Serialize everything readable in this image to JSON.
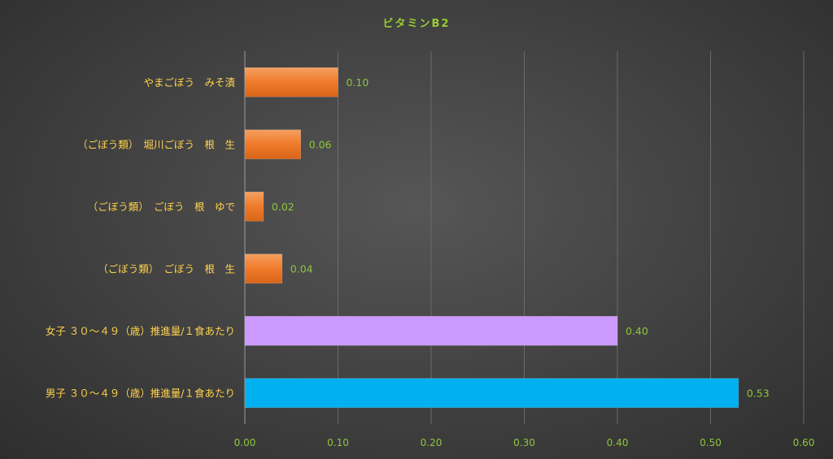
{
  "chart_data": {
    "type": "bar",
    "orientation": "horizontal",
    "title": "ビタミンB2",
    "categories": [
      "やまごぼう　みそ漬",
      "（ごぼう類）　堀川ごぼう　根　生",
      "（ごぼう類）　ごぼう　根　ゆで",
      "（ごぼう類）　ごぼう　根　生",
      "女子 ３０～４９（歳）推進量/１食あたり",
      "男子 ３０～４９（歳）推進量/１食あたり"
    ],
    "values": [
      0.1,
      0.06,
      0.02,
      0.04,
      0.4,
      0.53
    ],
    "value_labels": [
      "0.10",
      "0.06",
      "0.02",
      "0.04",
      "0.40",
      "0.53"
    ],
    "bar_colors": [
      "#f07f2d",
      "#f07f2d",
      "#f07f2d",
      "#f07f2d",
      "#cc99ff",
      "#00b0f0"
    ],
    "xlim": [
      0,
      0.6
    ],
    "xticks": [
      "0.00",
      "0.10",
      "0.20",
      "0.30",
      "0.40",
      "0.50",
      "0.60"
    ],
    "xlabel": "",
    "ylabel": "",
    "grid": true,
    "legend": "none"
  }
}
